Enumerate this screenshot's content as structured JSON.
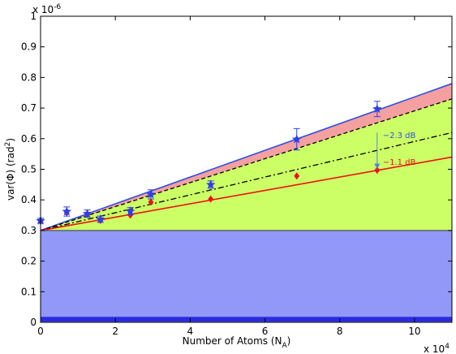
{
  "chart_data": {
    "type": "scatter",
    "xlabel": "Number of Atoms (N",
    "xlabel_sub": "A",
    "xlabel_tail": ")",
    "ylabel": "var(Φ)    (rad",
    "ylabel_sup": "2",
    "ylabel_tail": ")",
    "x_multiplier": "x 10",
    "x_multiplier_exp": "4",
    "y_multiplier": "x 10",
    "y_multiplier_exp": "-6",
    "xlim": [
      0,
      11
    ],
    "ylim": [
      0,
      1
    ],
    "xticks": [
      0,
      2,
      4,
      6,
      8,
      10
    ],
    "yticks": [
      0,
      0.1,
      0.2,
      0.3,
      0.4,
      0.5,
      0.6,
      0.7,
      0.8,
      0.9,
      1
    ],
    "xtick_labels": [
      "0",
      "2",
      "4",
      "6",
      "8",
      "10"
    ],
    "ytick_labels": [
      "0",
      "0.1",
      "0.2",
      "0.3",
      "0.4",
      "0.5",
      "0.6",
      "0.7",
      "0.8",
      "0.9",
      "1"
    ],
    "grid": false,
    "regions": {
      "blue_band": {
        "y": [
          0.3
        ],
        "color": "#9198f8"
      },
      "baseline_bar": {
        "y": 0.01,
        "color": "#2b2be0"
      },
      "green_region": {
        "color": "#ccff66"
      },
      "red_region": {
        "color": "#f4a0a0"
      }
    },
    "lines": [
      {
        "style": "solid",
        "color": "#3050e0",
        "y0": 0.3,
        "y1": 0.78
      },
      {
        "style": "dashed",
        "color": "#000000",
        "y0": 0.3,
        "y1": 0.73
      },
      {
        "style": "dashdot",
        "color": "#000000",
        "y0": 0.3,
        "y1": 0.62
      },
      {
        "style": "solid",
        "color": "#ee1111",
        "y0": 0.3,
        "y1": 0.54
      },
      {
        "style": "solid",
        "color": "#555555",
        "y0": 0.3,
        "y1": 0.3
      }
    ],
    "series": [
      {
        "marker": "star",
        "color": "#2e3fe6",
        "points": [
          {
            "x": 0.0,
            "y": 0.332,
            "err": 0.008
          },
          {
            "x": 0.7,
            "y": 0.362,
            "err": 0.015
          },
          {
            "x": 1.25,
            "y": 0.355,
            "err": 0.012
          },
          {
            "x": 1.6,
            "y": 0.337,
            "err": 0.01
          },
          {
            "x": 2.4,
            "y": 0.363,
            "err": 0.012
          },
          {
            "x": 2.95,
            "y": 0.418,
            "err": 0.015
          },
          {
            "x": 4.55,
            "y": 0.45,
            "err": 0.012
          },
          {
            "x": 6.85,
            "y": 0.598,
            "err": 0.035
          },
          {
            "x": 9.0,
            "y": 0.697,
            "err": 0.025
          }
        ]
      },
      {
        "marker": "diamond",
        "color": "#ee1111",
        "points": [
          {
            "x": 0.0,
            "y": 0.33
          },
          {
            "x": 0.7,
            "y": 0.358
          },
          {
            "x": 1.25,
            "y": 0.352
          },
          {
            "x": 1.6,
            "y": 0.333
          },
          {
            "x": 2.4,
            "y": 0.35
          },
          {
            "x": 2.95,
            "y": 0.393
          },
          {
            "x": 4.55,
            "y": 0.403
          },
          {
            "x": 6.85,
            "y": 0.478
          },
          {
            "x": 9.0,
            "y": 0.497
          }
        ]
      }
    ],
    "annotations": [
      {
        "text": "−2.3 dB",
        "color": "#3050e0",
        "x": 9.15,
        "y": 0.61
      },
      {
        "text": "−1.1 dB",
        "color": "#ee1111",
        "x": 9.15,
        "y": 0.523
      }
    ],
    "arrow": {
      "x": 9.0,
      "y_from": 0.62,
      "y_to": 0.5,
      "color": "#5a7fd8"
    }
  }
}
